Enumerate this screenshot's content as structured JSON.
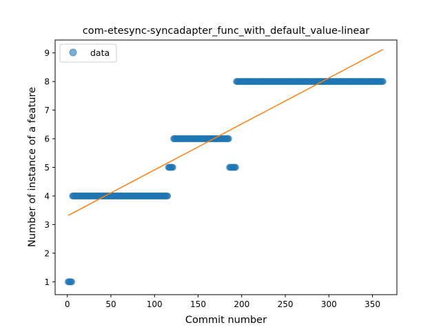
{
  "chart_data": {
    "type": "scatter",
    "title": "com-etesync-syncadapter_func_with_default_value-linear",
    "xlabel": "Commit number",
    "ylabel": "Number of instance of a feature",
    "xlim": [
      -14,
      378
    ],
    "ylim": [
      0.55,
      9.45
    ],
    "xticks": [
      0,
      50,
      100,
      150,
      200,
      250,
      300,
      350
    ],
    "yticks": [
      1,
      2,
      3,
      4,
      5,
      6,
      7,
      8,
      9
    ],
    "grid": false,
    "legend": {
      "position": "top-left",
      "entries": [
        {
          "label": "data",
          "marker": "circle"
        }
      ]
    },
    "colors": {
      "data": "#1f77b4",
      "fit": "#ff7f0e"
    },
    "series": [
      {
        "name": "data",
        "kind": "points",
        "segments": [
          {
            "x_start": 1,
            "x_end": 5,
            "y": 1
          },
          {
            "x_start": 6,
            "x_end": 115,
            "y": 4
          },
          {
            "x_start": 116,
            "x_end": 121,
            "y": 5
          },
          {
            "x_start": 122,
            "x_end": 185,
            "y": 6
          },
          {
            "x_start": 186,
            "x_end": 193,
            "y": 5
          },
          {
            "x_start": 194,
            "x_end": 362,
            "y": 8
          }
        ]
      },
      {
        "name": "fit",
        "kind": "line",
        "x": [
          1,
          362
        ],
        "y": [
          3.32,
          9.12
        ]
      }
    ]
  }
}
